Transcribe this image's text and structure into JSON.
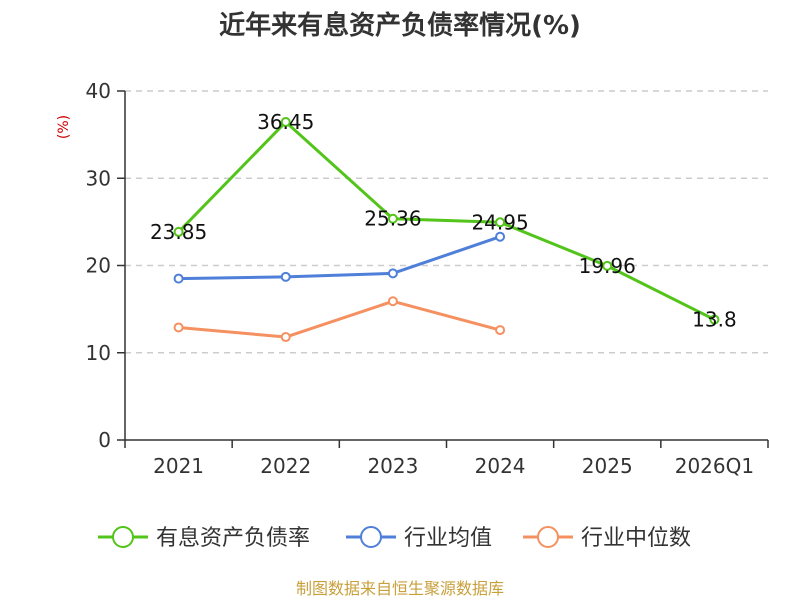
{
  "chart_data": {
    "type": "line",
    "title": "近年来有息资产负债率情况(%)",
    "ylabel": "(%)",
    "xlabel": "",
    "categories": [
      "2021",
      "2022",
      "2023",
      "2024",
      "2025",
      "2026Q1"
    ],
    "ylim": [
      0,
      40
    ],
    "yticks": [
      0,
      10,
      20,
      30,
      40
    ],
    "grid": true,
    "legend_position": "bottom",
    "series": [
      {
        "name": "有息资产负债率",
        "color": "#52c41a",
        "values": [
          23.85,
          36.45,
          25.36,
          24.95,
          19.96,
          13.8
        ],
        "labels": [
          "23.85",
          "36.45",
          "25.36",
          "24.95",
          "19.96",
          "13.8"
        ]
      },
      {
        "name": "行业均值",
        "color": "#4f7fd9",
        "values": [
          18.5,
          18.7,
          19.1,
          23.3,
          null,
          null
        ]
      },
      {
        "name": "行业中位数",
        "color": "#f59060",
        "values": [
          12.9,
          11.8,
          15.9,
          12.6,
          null,
          null
        ]
      }
    ],
    "source": "制图数据来自恒生聚源数据库",
    "colors": {
      "ylabel": "#cc0000",
      "source": "#c8a03c",
      "grid": "#cccccc",
      "axis": "#333333"
    }
  }
}
